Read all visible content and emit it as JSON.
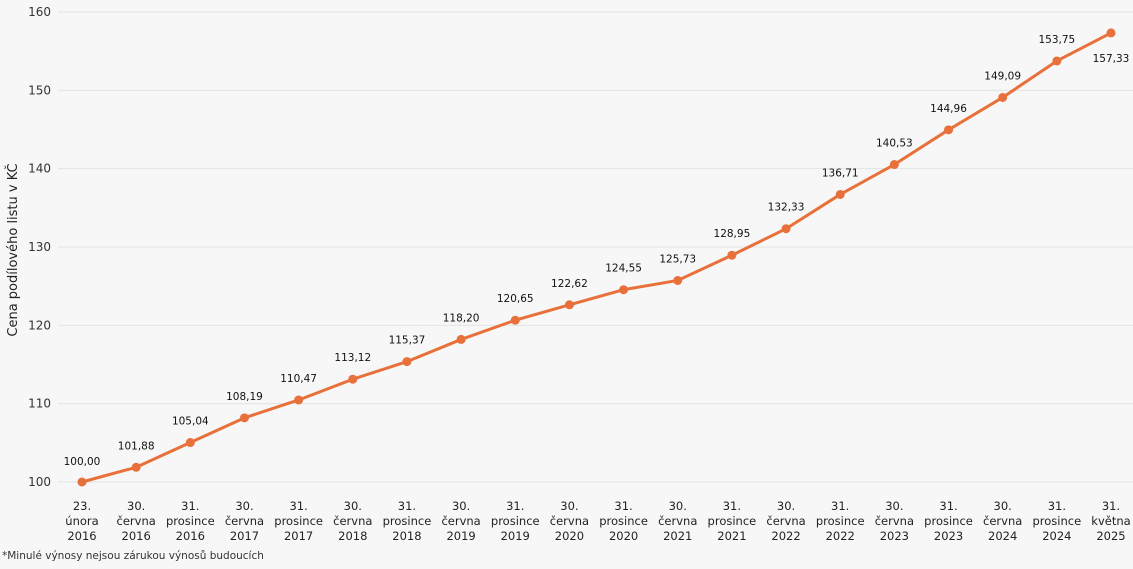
{
  "chart_data": {
    "type": "line",
    "ylabel": "Cena podílového listu v KČ",
    "ylim": [
      100,
      160
    ],
    "yticks": [
      "100",
      "110",
      "120",
      "130",
      "140",
      "150",
      "160"
    ],
    "grid": true,
    "line_color": "#e8703a",
    "categories": [
      [
        "23.",
        "února",
        "2016"
      ],
      [
        "30.",
        "června",
        "2016"
      ],
      [
        "31.",
        "prosince",
        "2016"
      ],
      [
        "30.",
        "června",
        "2017"
      ],
      [
        "31.",
        "prosince",
        "2017"
      ],
      [
        "30.",
        "června",
        "2018"
      ],
      [
        "31.",
        "prosince",
        "2018"
      ],
      [
        "30.",
        "června",
        "2019"
      ],
      [
        "31.",
        "prosince",
        "2019"
      ],
      [
        "30.",
        "června",
        "2020"
      ],
      [
        "31.",
        "prosince",
        "2020"
      ],
      [
        "30.",
        "června",
        "2021"
      ],
      [
        "31.",
        "prosince",
        "2021"
      ],
      [
        "30.",
        "června",
        "2022"
      ],
      [
        "31.",
        "prosince",
        "2022"
      ],
      [
        "30.",
        "června",
        "2023"
      ],
      [
        "31.",
        "prosince",
        "2023"
      ],
      [
        "30.",
        "června",
        "2024"
      ],
      [
        "31.",
        "prosince",
        "2024"
      ],
      [
        "31.",
        "května",
        "2025"
      ]
    ],
    "values": [
      100.0,
      101.88,
      105.04,
      108.19,
      110.47,
      113.12,
      115.37,
      118.2,
      120.65,
      122.62,
      124.55,
      125.73,
      128.95,
      132.33,
      136.71,
      140.53,
      144.96,
      149.09,
      153.75,
      157.33
    ],
    "value_labels": [
      "100,00",
      "101,88",
      "105,04",
      "108,19",
      "110,47",
      "113,12",
      "115,37",
      "118,20",
      "120,65",
      "122,62",
      "124,55",
      "125,73",
      "128,95",
      "132,33",
      "136,71",
      "140,53",
      "144,96",
      "149,09",
      "153,75",
      "157,33"
    ]
  },
  "footnote": "*Minulé výnosy nejsou zárukou výnosů budoucích"
}
